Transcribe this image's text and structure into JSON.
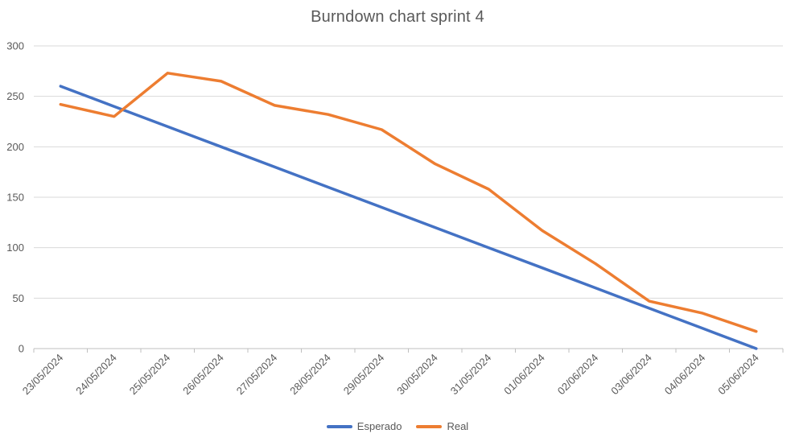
{
  "chart_data": {
    "type": "line",
    "title": "Burndown chart sprint 4",
    "xlabel": "",
    "ylabel": "",
    "categories": [
      "23/05/2024",
      "24/05/2024",
      "25/05/2024",
      "26/05/2024",
      "27/05/2024",
      "28/05/2024",
      "29/05/2024",
      "30/05/2024",
      "31/05/2024",
      "01/06/2024",
      "02/06/2024",
      "03/06/2024",
      "04/06/2024",
      "05/06/2024"
    ],
    "ylim": [
      0,
      300
    ],
    "yticks": [
      0,
      50,
      100,
      150,
      200,
      250,
      300
    ],
    "grid": true,
    "legend_position": "bottom",
    "series": [
      {
        "name": "Esperado",
        "color": "#4472C4",
        "values": [
          260,
          240,
          220,
          200,
          180,
          160,
          140,
          120,
          100,
          80,
          60,
          40,
          20,
          0
        ]
      },
      {
        "name": "Real",
        "color": "#ED7D31",
        "values": [
          242,
          230,
          273,
          265,
          241,
          232,
          217,
          183,
          158,
          117,
          84,
          47,
          35,
          17
        ]
      }
    ]
  }
}
